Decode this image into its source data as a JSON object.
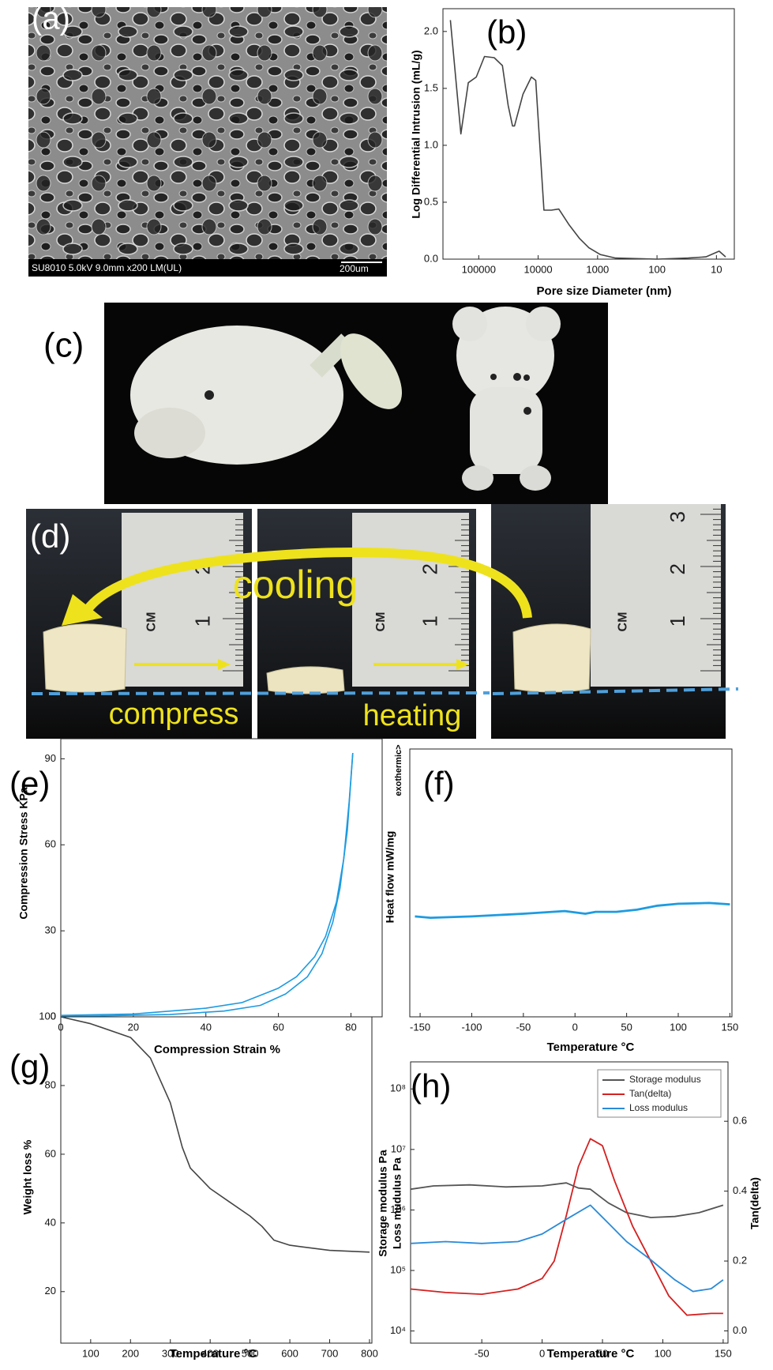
{
  "photos": {
    "a": {
      "label": "(a)",
      "caption": "SU8010 5.0kV 9.0mm x200 LM(UL)",
      "scale": "200um"
    },
    "c": {
      "label": "(c)"
    },
    "d": {
      "label": "(d)",
      "cooling": "cooling",
      "compress": "compress",
      "heating": "heating",
      "ruler": [
        "1",
        "2",
        "3"
      ],
      "unit": "CM"
    }
  },
  "chart_data": [
    {
      "type": "line",
      "label": "(b)",
      "xlabel": "Pore size Diameter (nm)",
      "ylabel": "Log Differential Intrusion (mL/g)",
      "xscale": "log",
      "xlim": [
        400000,
        5
      ],
      "xticks": [
        100000,
        10000,
        1000,
        100,
        10
      ],
      "ylim": [
        0,
        2.2
      ],
      "yticks": [
        {
          "value": 0,
          "label": "0.0"
        },
        0.5,
        {
          "value": 1,
          "label": "1.0"
        },
        1.5,
        {
          "value": 2,
          "label": "2.0"
        }
      ],
      "series": [
        {
          "color": "#444444",
          "x": [
            300000,
            200000,
            150000,
            110000,
            80000,
            55000,
            40000,
            32000,
            27000,
            25000,
            18000,
            13000,
            11000,
            8000,
            6000,
            4500,
            3000,
            2000,
            1400,
            900,
            500,
            100,
            30,
            15,
            9,
            7
          ],
          "values": [
            2.1,
            1.1,
            1.55,
            1.6,
            1.78,
            1.77,
            1.7,
            1.35,
            1.17,
            1.17,
            1.45,
            1.6,
            1.57,
            0.43,
            0.43,
            0.44,
            0.3,
            0.18,
            0.1,
            0.04,
            0.01,
            0,
            0.01,
            0.02,
            0.07,
            0.02
          ]
        }
      ]
    },
    {
      "type": "line",
      "label": "(e)",
      "xlabel": "Compression Strain %",
      "ylabel": "Compression Stress KPa",
      "xlim": [
        0,
        88.6
      ],
      "xticks": [
        0,
        20,
        40,
        60,
        80
      ],
      "ylim": [
        0,
        97
      ],
      "yticks": [
        0,
        30,
        60,
        90
      ],
      "series": [
        {
          "color": "#1e9be0",
          "x": [
            0,
            20,
            40,
            50,
            60,
            65,
            70,
            73,
            76,
            78,
            79.5,
            80.5
          ],
          "values": [
            0.5,
            1,
            3,
            5,
            10,
            14,
            21,
            28,
            40,
            55,
            75,
            92
          ]
        },
        {
          "color": "#1e9be0",
          "x": [
            80.5,
            79,
            77,
            75,
            72,
            68,
            62,
            55,
            45,
            30,
            10,
            0
          ],
          "values": [
            92,
            65,
            45,
            33,
            22,
            14,
            8,
            4,
            2,
            0.8,
            0.3,
            0.2
          ]
        }
      ]
    },
    {
      "type": "line",
      "label": "(f)",
      "xlabel": "Temperature °C",
      "ylabel": "Heat flow mW/mg",
      "ylabel_note": "exothermic>",
      "xlim": [
        -160,
        152
      ],
      "xticks": [
        -150,
        -100,
        -50,
        0,
        50,
        100,
        150
      ],
      "ylim": [
        0,
        10
      ],
      "series": [
        {
          "color": "#1e9be0",
          "x": [
            -155,
            -140,
            -100,
            -50,
            -10,
            10,
            20,
            40,
            60,
            80,
            100,
            130,
            150
          ],
          "values": [
            3.75,
            3.7,
            3.75,
            3.85,
            3.95,
            3.85,
            3.92,
            3.92,
            4.0,
            4.15,
            4.22,
            4.25,
            4.2
          ]
        }
      ]
    },
    {
      "type": "line",
      "label": "(g)",
      "xlabel": "Temperature °C",
      "ylabel": "Weight loss %",
      "xlim": [
        25,
        806
      ],
      "xticks": [
        100,
        200,
        300,
        400,
        500,
        600,
        700,
        800
      ],
      "ylim": [
        5,
        100
      ],
      "yticks": [
        20,
        40,
        60,
        80,
        100
      ],
      "series": [
        {
          "color": "#444444",
          "x": [
            25,
            100,
            200,
            250,
            300,
            330,
            350,
            400,
            450,
            500,
            530,
            560,
            600,
            700,
            800
          ],
          "values": [
            100,
            98,
            94,
            88,
            75,
            62,
            56,
            50,
            46,
            42,
            39,
            35,
            33.5,
            32,
            31.5
          ]
        }
      ]
    },
    {
      "type": "line",
      "label": "(h)",
      "xlabel": "Temperature °C",
      "ylabel": "Storage modulus Pa",
      "ylabel2": "Loss mudulus Pa",
      "y2label": "Tan(delta)",
      "xlim": [
        -109,
        154
      ],
      "xticks": [
        -50,
        0,
        50,
        100,
        150
      ],
      "yscale": "log",
      "ylim": [
        6300,
        280000000
      ],
      "yticks": [
        {
          "value": 10000,
          "label": "10⁴"
        },
        {
          "value": 100000,
          "label": "10⁵"
        },
        {
          "value": 1000000,
          "label": "10⁶"
        },
        {
          "value": 10000000,
          "label": "10⁷"
        },
        {
          "value": 100000000,
          "label": "10⁸"
        }
      ],
      "y2lim": [
        -0.035,
        0.77
      ],
      "y2ticks": [
        {
          "value": 0,
          "label": "0.0"
        },
        0.2,
        0.4,
        0.6
      ],
      "legend": "top-right",
      "series": [
        {
          "name": "Storage modulus",
          "color": "#555555",
          "x": [
            -109,
            -90,
            -60,
            -30,
            0,
            20,
            30,
            40,
            55,
            70,
            90,
            110,
            130,
            150
          ],
          "values": [
            2200000,
            2500000,
            2600000,
            2400000,
            2500000,
            2800000,
            2300000,
            2200000,
            1300000,
            900000,
            750000,
            780000,
            900000,
            1200000
          ]
        },
        {
          "name": "Tan(delta)",
          "color": "#d42020",
          "axis": "y2",
          "x": [
            -109,
            -80,
            -50,
            -20,
            0,
            10,
            20,
            30,
            40,
            50,
            60,
            75,
            90,
            105,
            120,
            140,
            150
          ],
          "values": [
            0.12,
            0.11,
            0.105,
            0.12,
            0.15,
            0.2,
            0.33,
            0.47,
            0.55,
            0.53,
            0.43,
            0.3,
            0.2,
            0.1,
            0.045,
            0.05,
            0.05
          ]
        },
        {
          "name": "Loss modulus",
          "color": "#2a8ad8",
          "x": [
            -109,
            -80,
            -50,
            -20,
            0,
            20,
            40,
            55,
            70,
            90,
            110,
            125,
            140,
            150
          ],
          "values": [
            280000,
            300000,
            280000,
            300000,
            400000,
            700000,
            1200000,
            600000,
            300000,
            150000,
            70000,
            45000,
            50000,
            70000
          ]
        }
      ]
    }
  ]
}
